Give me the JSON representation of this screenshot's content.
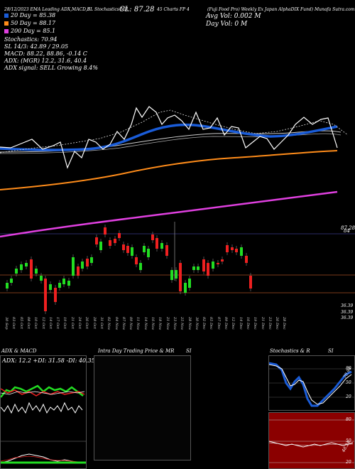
{
  "header": {
    "title_parts": [
      "SL Stochastics MR",
      "CL: 87.28",
      "45 Charts FP",
      "4",
      "(Fuji Food Pro) Weekly Ex Japan AlphaDIX Fund) Munafa Sutra.com"
    ],
    "top_strip": "28/12/2023 EMA Leading ADX,MACD,B",
    "close_label": "CL: 87.28",
    "avg_vol": "Avg Vol: 0.002  M",
    "day_vol": "Day Vol: 0   M"
  },
  "legend": [
    {
      "label": "20  Day = 85.38",
      "color": "#1a5cd8"
    },
    {
      "label": "50  Day = 88.17",
      "color": "#ff8c1a"
    },
    {
      "label": "200  Day = 85.1",
      "color": "#e040e0"
    }
  ],
  "indicators": {
    "stochastics": "Stochastics: 70.94",
    "stoch_vals": "SL 14/3: 42.89 / 29.05",
    "macd": "MACD: 88.22,  88.86, -0.14  C",
    "adx": "ADX:                 (MGR) 12.2, 31.6, 40.4",
    "adx_signal": "ADX  signal: SELL Growing 8.4%"
  },
  "price_labels": {
    "r1": "87.28",
    "r2": "84",
    "b1": "36.39",
    "b2": "36.39",
    "b3": "36.39"
  },
  "dates": [
    "30 Sep",
    "03 Oct",
    "05 Oct",
    "08 Oct",
    "10 Oct",
    "12 Oct",
    "14 Oct",
    "17 Oct",
    "19 Oct",
    "21 Oct",
    "24 Oct",
    "26 Oct",
    "28 Oct",
    "31 Oct",
    "02 Nov",
    "04 Nov",
    "07 Nov",
    "09 Nov",
    "11 Nov",
    "14 Nov",
    "16 Nov",
    "18 Nov",
    "21 Nov",
    "23 Nov",
    "25 Nov",
    "28 Nov",
    "30 Nov",
    "02 Dec",
    "05 Dec",
    "07 Dec",
    "09 Dec",
    "12 Dec",
    "14 Dec",
    "16 Dec",
    "19 Dec",
    "21 Dec",
    "23 Dec",
    "26 Dec",
    "28 Dec"
  ],
  "panels": {
    "adx_title": "ADX  & MACD",
    "adx_vals": "ADX: 12.2   +DI: 31.58   -DI: 40.35",
    "intra_title": "Intra  Day Trading Price  & MR",
    "intra_si": "SI",
    "stoch_title": "Stochastics & R",
    "stoch_si": "SI",
    "stoch_marks": [
      "80",
      "50",
      "20"
    ],
    "stoch_val": "70.94",
    "rsi_marks": [
      "80",
      "50",
      "20"
    ],
    "rsi_val": "48.24"
  },
  "colors": {
    "ema20": "#1a5cd8",
    "ema50": "#ff8c1a",
    "ema200": "#e040e0",
    "up": "#22dd22",
    "down": "#ee2020",
    "rsi_bg": "#8b0000",
    "stoch_bg": "#000000"
  }
}
